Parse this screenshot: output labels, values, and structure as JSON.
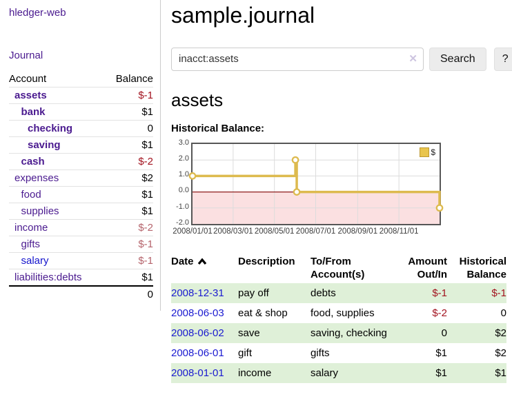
{
  "app": {
    "brand": "hledger-web",
    "nav_journal": "Journal"
  },
  "sidebar": {
    "accounts": {
      "header_account": "Account",
      "header_balance": "Balance",
      "rows": [
        {
          "name": "assets",
          "balance": "$-1",
          "depth": 1,
          "bold": true,
          "balance_tone": "neg-strong",
          "link_color": "purple"
        },
        {
          "name": "bank",
          "balance": "$1",
          "depth": 2,
          "bold": true,
          "balance_tone": "",
          "link_color": "purple"
        },
        {
          "name": "checking",
          "balance": "0",
          "depth": 3,
          "bold": true,
          "balance_tone": "",
          "link_color": "purple"
        },
        {
          "name": "saving",
          "balance": "$1",
          "depth": 3,
          "bold": true,
          "balance_tone": "",
          "link_color": "purple"
        },
        {
          "name": "cash",
          "balance": "$-2",
          "depth": 2,
          "bold": true,
          "balance_tone": "neg-strong",
          "link_color": "purple"
        },
        {
          "name": "expenses",
          "balance": "$2",
          "depth": 1,
          "bold": false,
          "balance_tone": "",
          "link_color": "purple"
        },
        {
          "name": "food",
          "balance": "$1",
          "depth": 2,
          "bold": false,
          "balance_tone": "",
          "link_color": "purple"
        },
        {
          "name": "supplies",
          "balance": "$1",
          "depth": 2,
          "bold": false,
          "balance_tone": "",
          "link_color": "purple"
        },
        {
          "name": "income",
          "balance": "$-2",
          "depth": 1,
          "bold": false,
          "balance_tone": "neg-soft",
          "link_color": "purple"
        },
        {
          "name": "gifts",
          "balance": "$-1",
          "depth": 2,
          "bold": false,
          "balance_tone": "neg-soft",
          "link_color": "purple"
        },
        {
          "name": "salary",
          "balance": "$-1",
          "depth": 2,
          "bold": false,
          "balance_tone": "neg-soft",
          "link_color": "blue"
        },
        {
          "name": "liabilities:debts",
          "balance": "$1",
          "depth": 1,
          "bold": false,
          "balance_tone": "",
          "link_color": "purple"
        }
      ],
      "total": "0"
    }
  },
  "header": {
    "title": "sample.journal"
  },
  "search": {
    "value": "inacct:assets",
    "clear_icon_glyph": "✕",
    "button_label": "Search",
    "help_button_label": "?"
  },
  "account_page": {
    "heading": "assets",
    "chart_title": "Historical Balance:"
  },
  "chart_data": {
    "type": "line",
    "step": true,
    "title": "Historical Balance:",
    "legend": "$",
    "legend_position": "top-right",
    "grid": true,
    "x_range": [
      "2008-01-01",
      "2008-12-31"
    ],
    "ylim": [
      -2.0,
      3.0
    ],
    "yticks": [
      "3.0",
      "2.0",
      "1.0",
      "0.0",
      "-1.0",
      "-2.0"
    ],
    "xticks": [
      "2008/01/01",
      "2008/03/01",
      "2008/05/01",
      "2008/07/01",
      "2008/09/01",
      "2008/11/01"
    ],
    "series": [
      {
        "name": "$",
        "color": "#ddba4e",
        "marker_fill": "#ffffff",
        "points": [
          {
            "date": "2008-01-01",
            "value": 1
          },
          {
            "date": "2008-06-01",
            "value": 2
          },
          {
            "date": "2008-06-03",
            "value": 0
          },
          {
            "date": "2008-12-31",
            "value": -1
          }
        ]
      }
    ],
    "negative_region_fill": "#fbe0e1",
    "zero_line_color": "#8e1b1b",
    "gridline_color": "#dcdcdc"
  },
  "register": {
    "headers": {
      "date": "Date",
      "description": "Description",
      "account": "To/From Account(s)",
      "amount": "Amount Out/In",
      "balance": "Historical Balance"
    },
    "sort_icon": "chevron-up-icon",
    "rows": [
      {
        "date": "2008-12-31",
        "description": "pay off",
        "accounts": "debts",
        "amount": "$-1",
        "amount_tone": "neg-strong",
        "balance": "$-1",
        "balance_tone": "neg-strong",
        "shaded": true
      },
      {
        "date": "2008-06-03",
        "description": "eat & shop",
        "accounts": "food, supplies",
        "amount": "$-2",
        "amount_tone": "neg-strong",
        "balance": "0",
        "balance_tone": "",
        "shaded": false
      },
      {
        "date": "2008-06-02",
        "description": "save",
        "accounts": "saving, checking",
        "amount": "0",
        "amount_tone": "",
        "balance": "$2",
        "balance_tone": "",
        "shaded": true
      },
      {
        "date": "2008-06-01",
        "description": "gift",
        "accounts": "gifts",
        "amount": "$1",
        "amount_tone": "",
        "balance": "$2",
        "balance_tone": "",
        "shaded": false
      },
      {
        "date": "2008-01-01",
        "description": "income",
        "accounts": "salary",
        "amount": "$1",
        "amount_tone": "",
        "balance": "$1",
        "balance_tone": "",
        "shaded": true
      }
    ]
  }
}
